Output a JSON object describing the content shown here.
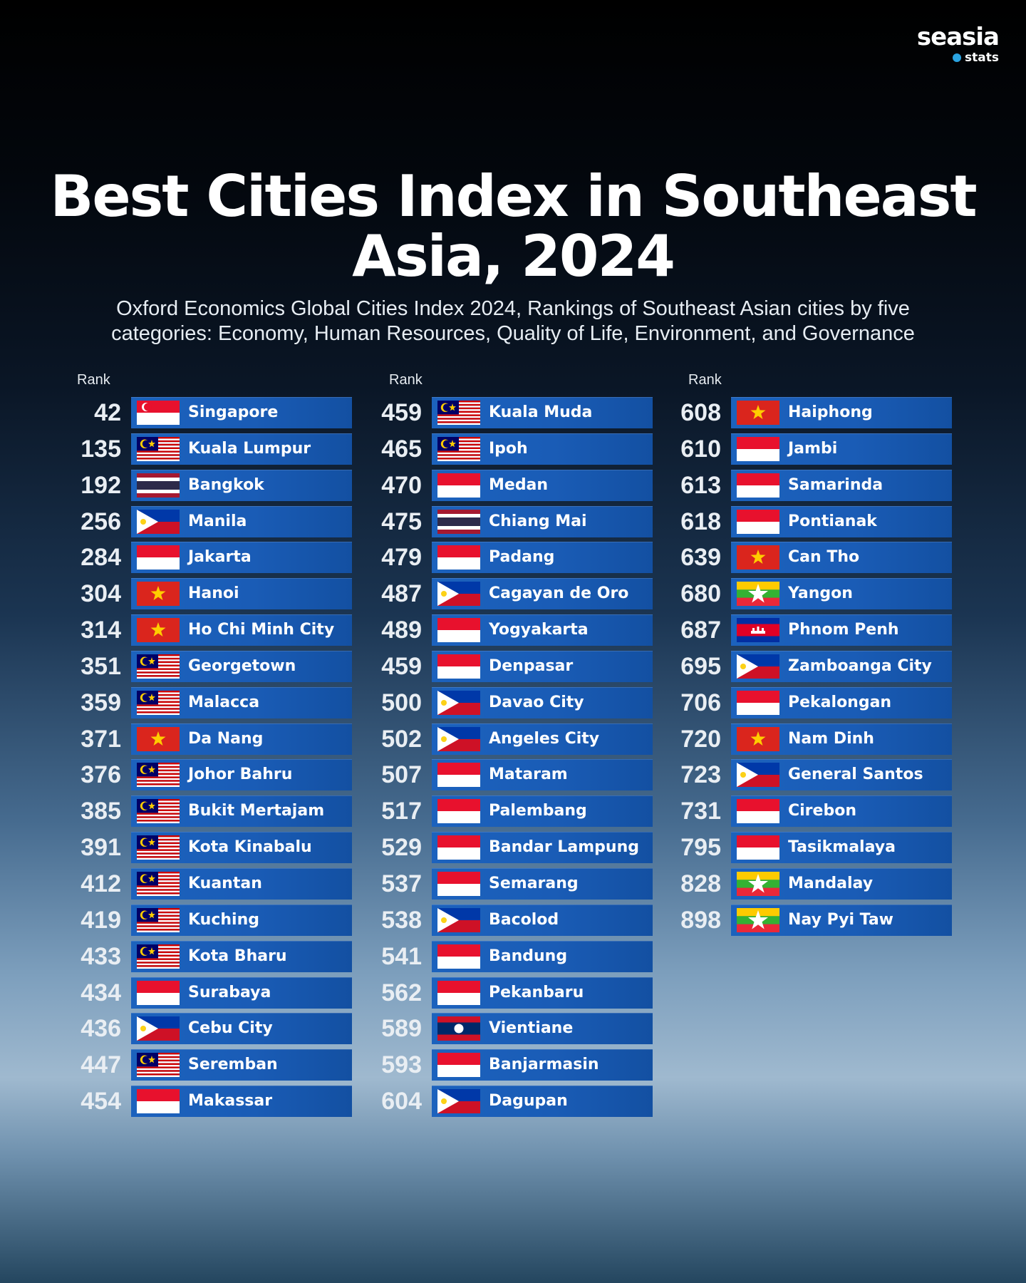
{
  "brand": {
    "name": "seasia",
    "sub": "stats"
  },
  "chart_data": {
    "type": "table",
    "title": "Best Cities Index in Southeast Asia, 2024",
    "subtitle": "Oxford Economics Global Cities Index 2024, Rankings of Southeast Asian cities by five categories: Economy, Human Resources, Quality of Life, Environment, and Governance",
    "rank_header": "Rank",
    "columns": [
      [
        {
          "rank": "42",
          "city": "Singapore",
          "flag": "singapore"
        },
        {
          "rank": "135",
          "city": "Kuala Lumpur",
          "flag": "malaysia"
        },
        {
          "rank": "192",
          "city": "Bangkok",
          "flag": "thailand"
        },
        {
          "rank": "256",
          "city": "Manila",
          "flag": "philippines"
        },
        {
          "rank": "284",
          "city": "Jakarta",
          "flag": "indonesia"
        },
        {
          "rank": "304",
          "city": "Hanoi",
          "flag": "vietnam"
        },
        {
          "rank": "314",
          "city": "Ho Chi Minh City",
          "flag": "vietnam"
        },
        {
          "rank": "351",
          "city": "Georgetown",
          "flag": "malaysia"
        },
        {
          "rank": "359",
          "city": "Malacca",
          "flag": "malaysia"
        },
        {
          "rank": "371",
          "city": "Da Nang",
          "flag": "vietnam"
        },
        {
          "rank": "376",
          "city": "Johor Bahru",
          "flag": "malaysia"
        },
        {
          "rank": "385",
          "city": "Bukit Mertajam",
          "flag": "malaysia"
        },
        {
          "rank": "391",
          "city": "Kota Kinabalu",
          "flag": "malaysia"
        },
        {
          "rank": "412",
          "city": "Kuantan",
          "flag": "malaysia"
        },
        {
          "rank": "419",
          "city": "Kuching",
          "flag": "malaysia"
        },
        {
          "rank": "433",
          "city": "Kota Bharu",
          "flag": "malaysia"
        },
        {
          "rank": "434",
          "city": "Surabaya",
          "flag": "indonesia"
        },
        {
          "rank": "436",
          "city": "Cebu City",
          "flag": "philippines"
        },
        {
          "rank": "447",
          "city": "Seremban",
          "flag": "malaysia"
        },
        {
          "rank": "454",
          "city": "Makassar",
          "flag": "indonesia"
        }
      ],
      [
        {
          "rank": "459",
          "city": "Kuala Muda",
          "flag": "malaysia"
        },
        {
          "rank": "465",
          "city": "Ipoh",
          "flag": "malaysia"
        },
        {
          "rank": "470",
          "city": "Medan",
          "flag": "indonesia"
        },
        {
          "rank": "475",
          "city": "Chiang Mai",
          "flag": "thailand"
        },
        {
          "rank": "479",
          "city": "Padang",
          "flag": "indonesia"
        },
        {
          "rank": "487",
          "city": "Cagayan de Oro",
          "flag": "philippines"
        },
        {
          "rank": "489",
          "city": "Yogyakarta",
          "flag": "indonesia"
        },
        {
          "rank": "459",
          "city": "Denpasar",
          "flag": "indonesia"
        },
        {
          "rank": "500",
          "city": "Davao City",
          "flag": "philippines"
        },
        {
          "rank": "502",
          "city": "Angeles City",
          "flag": "philippines"
        },
        {
          "rank": "507",
          "city": "Mataram",
          "flag": "indonesia"
        },
        {
          "rank": "517",
          "city": "Palembang",
          "flag": "indonesia"
        },
        {
          "rank": "529",
          "city": "Bandar Lampung",
          "flag": "indonesia"
        },
        {
          "rank": "537",
          "city": "Semarang",
          "flag": "indonesia"
        },
        {
          "rank": "538",
          "city": "Bacolod",
          "flag": "philippines"
        },
        {
          "rank": "541",
          "city": "Bandung",
          "flag": "indonesia"
        },
        {
          "rank": "562",
          "city": "Pekanbaru",
          "flag": "indonesia"
        },
        {
          "rank": "589",
          "city": "Vientiane",
          "flag": "laos"
        },
        {
          "rank": "593",
          "city": "Banjarmasin",
          "flag": "indonesia"
        },
        {
          "rank": "604",
          "city": "Dagupan",
          "flag": "philippines"
        }
      ],
      [
        {
          "rank": "608",
          "city": "Haiphong",
          "flag": "vietnam"
        },
        {
          "rank": "610",
          "city": "Jambi",
          "flag": "indonesia"
        },
        {
          "rank": "613",
          "city": "Samarinda",
          "flag": "indonesia"
        },
        {
          "rank": "618",
          "city": "Pontianak",
          "flag": "indonesia"
        },
        {
          "rank": "639",
          "city": "Can Tho",
          "flag": "vietnam"
        },
        {
          "rank": "680",
          "city": "Yangon",
          "flag": "myanmar"
        },
        {
          "rank": "687",
          "city": "Phnom Penh",
          "flag": "cambodia"
        },
        {
          "rank": "695",
          "city": "Zamboanga City",
          "flag": "philippines"
        },
        {
          "rank": "706",
          "city": "Pekalongan",
          "flag": "indonesia"
        },
        {
          "rank": "720",
          "city": "Nam Dinh",
          "flag": "vietnam"
        },
        {
          "rank": "723",
          "city": "General Santos",
          "flag": "philippines"
        },
        {
          "rank": "731",
          "city": "Cirebon",
          "flag": "indonesia"
        },
        {
          "rank": "795",
          "city": "Tasikmalaya",
          "flag": "indonesia"
        },
        {
          "rank": "828",
          "city": "Mandalay",
          "flag": "myanmar"
        },
        {
          "rank": "898",
          "city": "Nay Pyi Taw",
          "flag": "myanmar"
        }
      ]
    ]
  }
}
